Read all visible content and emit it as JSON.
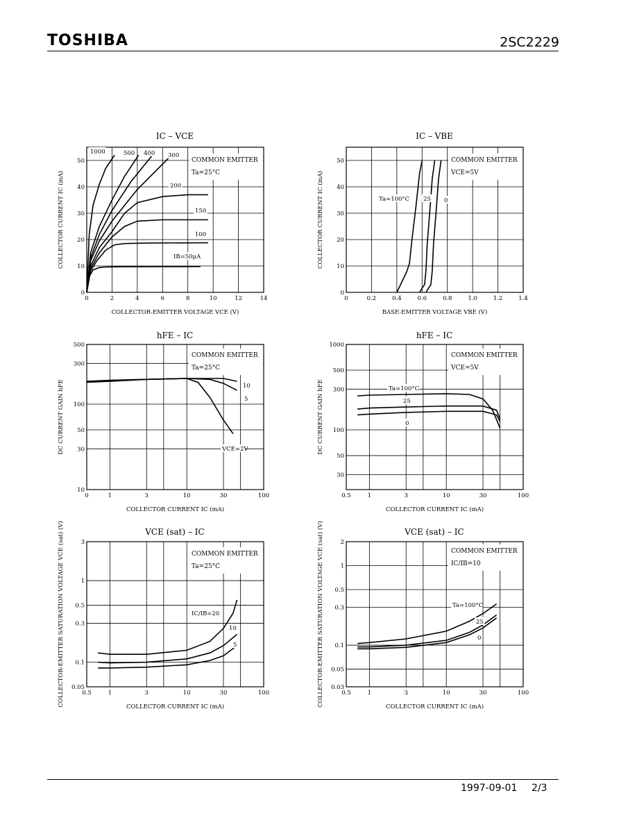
{
  "header": {
    "brand": "TOSHIBA",
    "part_number": "2SC2229"
  },
  "footer": {
    "date": "1997-09-01",
    "page": "2/3"
  },
  "chart_data": [
    {
      "type": "line",
      "title": "IC – VCE",
      "xlabel": "COLLECTOR-EMITTER VOLTAGE  VCE  (V)",
      "ylabel": "COLLECTOR CURRENT  IC  (mA)",
      "xlim": [
        0,
        14
      ],
      "ylim": [
        0,
        55
      ],
      "x_ticks": [
        "0",
        "2",
        "4",
        "6",
        "8",
        "10",
        "12",
        "14"
      ],
      "y_ticks": [
        "0",
        "10",
        "20",
        "30",
        "40",
        "50"
      ],
      "annotations": [
        "COMMON EMITTER",
        "Ta=25°C"
      ],
      "series": [
        {
          "name": "1000",
          "x": [
            0,
            0.2,
            0.5,
            1,
            1.5,
            2.2
          ],
          "y": [
            0,
            22,
            33,
            41,
            47,
            52
          ]
        },
        {
          "name": "500",
          "x": [
            0,
            0.3,
            1,
            2,
            3,
            4.1
          ],
          "y": [
            0,
            15,
            25,
            35,
            44,
            52
          ]
        },
        {
          "name": "400",
          "x": [
            0,
            0.3,
            1,
            2,
            3.5,
            5.2
          ],
          "y": [
            0,
            13,
            22,
            31,
            42,
            52
          ]
        },
        {
          "name": "300",
          "x": [
            0,
            0.3,
            1,
            2,
            4,
            6.5
          ],
          "y": [
            0,
            12,
            19.5,
            27,
            39,
            51
          ]
        },
        {
          "name": "200",
          "x": [
            0,
            0.3,
            1,
            2,
            3,
            4,
            6,
            8,
            9.6
          ],
          "y": [
            0,
            10,
            17,
            23,
            30,
            34,
            36.3,
            37,
            37
          ]
        },
        {
          "name": "150",
          "x": [
            0,
            0.3,
            1,
            2,
            3,
            4,
            6,
            9.6
          ],
          "y": [
            0,
            9,
            15,
            21,
            25,
            27,
            27.5,
            27.5
          ]
        },
        {
          "name": "100",
          "x": [
            0,
            0.3,
            0.8,
            1.5,
            2.2,
            3,
            5,
            9.6
          ],
          "y": [
            0,
            8,
            12,
            16,
            18,
            18.5,
            18.7,
            18.8
          ]
        },
        {
          "name": "IB=50μA",
          "x": [
            0,
            0.2,
            0.5,
            1,
            1.5,
            3,
            9
          ],
          "y": [
            0,
            6,
            8.5,
            9.4,
            9.6,
            9.7,
            9.8
          ]
        }
      ]
    },
    {
      "type": "line",
      "title": "IC – VBE",
      "xlabel": "BASE-EMITTER VOLTAGE  VBE  (V)",
      "ylabel": "COLLECTOR CURRENT  IC  (mA)",
      "xlim": [
        0,
        1.4
      ],
      "ylim": [
        0,
        55
      ],
      "x_ticks": [
        "0",
        "0.2",
        "0.4",
        "0.6",
        "0.8",
        "1.0",
        "1.2",
        "1.4"
      ],
      "y_ticks": [
        "0",
        "10",
        "20",
        "30",
        "40",
        "50"
      ],
      "annotations": [
        "COMMON EMITTER",
        "VCE=5V"
      ],
      "series": [
        {
          "name": "Ta=100°C",
          "x": [
            0.4,
            0.45,
            0.48,
            0.5,
            0.52,
            0.55,
            0.58,
            0.6
          ],
          "y": [
            0,
            5,
            8,
            11,
            20,
            32,
            45,
            50
          ]
        },
        {
          "name": "25",
          "x": [
            0.58,
            0.62,
            0.63,
            0.64,
            0.66,
            0.68,
            0.7
          ],
          "y": [
            0,
            3,
            8,
            18,
            30,
            43,
            50
          ]
        },
        {
          "name": "0",
          "x": [
            0.63,
            0.67,
            0.68,
            0.69,
            0.71,
            0.73,
            0.75
          ],
          "y": [
            0,
            3,
            8,
            18,
            30,
            43,
            50
          ]
        }
      ]
    },
    {
      "type": "line",
      "title": "hFE – IC",
      "xlabel": "COLLECTOR CURRENT  IC  (mA)",
      "ylabel": "DC CURRENT GAIN  hFE",
      "xscale": "log",
      "yscale": "log",
      "xlim": [
        0.5,
        100
      ],
      "ylim": [
        10,
        500
      ],
      "x_ticks": [
        "0",
        "1",
        "3",
        "10",
        "30",
        "100"
      ],
      "y_ticks": [
        "10",
        "30",
        "50",
        "100",
        "300",
        "500"
      ],
      "annotations": [
        "COMMON EMITTER",
        "Ta=25°C"
      ],
      "series": [
        {
          "name": "10",
          "x": [
            0.5,
            1,
            3,
            10,
            30,
            45
          ],
          "y": [
            185,
            190,
            195,
            200,
            200,
            185
          ]
        },
        {
          "name": "5",
          "x": [
            0.5,
            1,
            3,
            10,
            20,
            30,
            45
          ],
          "y": [
            185,
            190,
            195,
            200,
            195,
            175,
            145
          ]
        },
        {
          "name": "VCE=2V",
          "x": [
            0.5,
            1,
            3,
            10,
            14,
            20,
            30,
            40
          ],
          "y": [
            180,
            185,
            195,
            200,
            180,
            120,
            65,
            45
          ]
        }
      ]
    },
    {
      "type": "line",
      "title": "hFE – IC",
      "xlabel": "COLLECTOR CURRENT  IC  (mA)",
      "ylabel": "DC CURRENT GAIN  hFE",
      "xscale": "log",
      "yscale": "log",
      "xlim": [
        0.5,
        100
      ],
      "ylim": [
        20,
        1000
      ],
      "x_ticks": [
        "0.5",
        "1",
        "3",
        "10",
        "30",
        "100"
      ],
      "y_ticks": [
        "30",
        "50",
        "100",
        "300",
        "500",
        "1000"
      ],
      "annotations": [
        "COMMON EMITTER",
        "VCE=5V"
      ],
      "series": [
        {
          "name": "Ta=100°C",
          "x": [
            0.7,
            1,
            3,
            10,
            20,
            30,
            40,
            50
          ],
          "y": [
            250,
            255,
            260,
            265,
            260,
            230,
            170,
            105
          ]
        },
        {
          "name": "25",
          "x": [
            0.7,
            1,
            3,
            10,
            30,
            45,
            50
          ],
          "y": [
            175,
            180,
            185,
            190,
            190,
            170,
            135
          ]
        },
        {
          "name": "0",
          "x": [
            0.7,
            1,
            3,
            10,
            30,
            45,
            50
          ],
          "y": [
            150,
            153,
            160,
            165,
            165,
            150,
            125
          ]
        }
      ]
    },
    {
      "type": "line",
      "title": "VCE (sat) – IC",
      "xlabel": "COLLECTOR CURRENT  IC  (mA)",
      "ylabel": "COLLECTOR-EMITTER SATURATION VOLTAGE  VCE (sat)  (V)",
      "xscale": "log",
      "yscale": "log",
      "xlim": [
        0.5,
        100
      ],
      "ylim": [
        0.05,
        3
      ],
      "x_ticks": [
        "0.5",
        "1",
        "3",
        "10",
        "30",
        "100"
      ],
      "y_ticks": [
        "0.05",
        "0.1",
        "0.3",
        "0.5",
        "1",
        "3"
      ],
      "annotations": [
        "COMMON EMITTER",
        "Ta=25°C"
      ],
      "series": [
        {
          "name": "IC/IB=20",
          "x": [
            0.7,
            1,
            3,
            10,
            20,
            30,
            40,
            45
          ],
          "y": [
            0.13,
            0.125,
            0.125,
            0.14,
            0.18,
            0.26,
            0.4,
            0.58
          ]
        },
        {
          "name": "10",
          "x": [
            0.7,
            1,
            3,
            10,
            20,
            30,
            45
          ],
          "y": [
            0.1,
            0.098,
            0.1,
            0.11,
            0.13,
            0.16,
            0.22
          ]
        },
        {
          "name": "5",
          "x": [
            0.7,
            1,
            3,
            10,
            20,
            30,
            45
          ],
          "y": [
            0.085,
            0.085,
            0.087,
            0.093,
            0.105,
            0.12,
            0.16
          ]
        }
      ]
    },
    {
      "type": "line",
      "title": "VCE (sat) – IC",
      "xlabel": "COLLECTOR CURRENT  IC  (mA)",
      "ylabel": "COLLECTOR-EMITTER SATURATION VOLTAGE  VCE (sat)  (V)",
      "xscale": "log",
      "yscale": "log",
      "xlim": [
        0.5,
        100
      ],
      "ylim": [
        0.03,
        2
      ],
      "x_ticks": [
        "0.5",
        "1",
        "3",
        "10",
        "30",
        "100"
      ],
      "y_ticks": [
        "0.03",
        "0.05",
        "0.1",
        "0.3",
        "0.5",
        "1",
        "2"
      ],
      "annotations": [
        "COMMON EMITTER",
        "IC/IB=10"
      ],
      "series": [
        {
          "name": "Ta=100°C",
          "x": [
            0.7,
            1,
            3,
            10,
            20,
            30,
            45
          ],
          "y": [
            0.105,
            0.108,
            0.12,
            0.15,
            0.2,
            0.25,
            0.33
          ]
        },
        {
          "name": "25",
          "x": [
            0.7,
            1,
            3,
            10,
            20,
            30,
            45
          ],
          "y": [
            0.095,
            0.095,
            0.1,
            0.115,
            0.145,
            0.18,
            0.24
          ]
        },
        {
          "name": "0",
          "x": [
            0.7,
            1,
            3,
            10,
            20,
            30,
            45
          ],
          "y": [
            0.09,
            0.09,
            0.094,
            0.108,
            0.135,
            0.165,
            0.22
          ]
        }
      ]
    }
  ]
}
